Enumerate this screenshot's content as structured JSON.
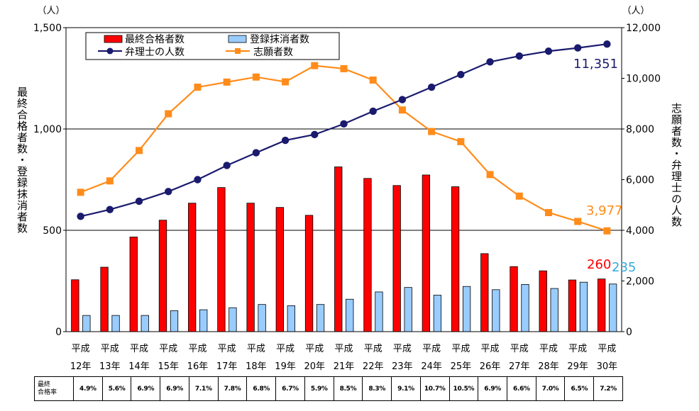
{
  "chart_data": {
    "type": "bar+line",
    "categories": [
      [
        "平成",
        "12年"
      ],
      [
        "平成",
        "13年"
      ],
      [
        "平成",
        "14年"
      ],
      [
        "平成",
        "15年"
      ],
      [
        "平成",
        "16年"
      ],
      [
        "平成",
        "17年"
      ],
      [
        "平成",
        "18年"
      ],
      [
        "平成",
        "19年"
      ],
      [
        "平成",
        "20年"
      ],
      [
        "平成",
        "21年"
      ],
      [
        "平成",
        "22年"
      ],
      [
        "平成",
        "23年"
      ],
      [
        "平成",
        "24年"
      ],
      [
        "平成",
        "25年"
      ],
      [
        "平成",
        "26年"
      ],
      [
        "平成",
        "27年"
      ],
      [
        "平成",
        "28年"
      ],
      [
        "平成",
        "29年"
      ],
      [
        "平成",
        "30年"
      ]
    ],
    "left_axis": {
      "label": "最終合格者数・登録抹消者数",
      "unit": "（人）",
      "ylim": [
        0,
        1500
      ],
      "ticks": [
        0,
        500,
        1000,
        1500
      ],
      "tick_labels": [
        "0",
        "500",
        "1,000",
        "1,500"
      ]
    },
    "right_axis": {
      "label": "志願者数・弁理士の人数",
      "unit": "（人）",
      "ylim": [
        0,
        12000
      ],
      "ticks": [
        0,
        2000,
        4000,
        6000,
        8000,
        10000,
        12000
      ],
      "tick_labels": [
        "0",
        "2,000",
        "4,000",
        "6,000",
        "8,000",
        "10,000",
        "12,000"
      ]
    },
    "series": [
      {
        "name": "最終合格者数",
        "type": "bar",
        "axis": "left",
        "color": "#ff0000",
        "values": [
          256,
          318,
          467,
          550,
          634,
          711,
          634,
          613,
          574,
          813,
          756,
          721,
          773,
          715,
          385,
          321,
          300,
          255,
          260
        ]
      },
      {
        "name": "登録抹消者数",
        "type": "bar",
        "axis": "left",
        "color": "#99ccff",
        "values": [
          80,
          80,
          80,
          103,
          108,
          118,
          134,
          128,
          134,
          160,
          196,
          218,
          180,
          223,
          207,
          233,
          213,
          244,
          235
        ]
      },
      {
        "name": "弁理士の人数",
        "type": "line",
        "axis": "right",
        "color": "#1a1a6e",
        "values": [
          4550,
          4820,
          5150,
          5530,
          6000,
          6560,
          7060,
          7550,
          7780,
          8200,
          8700,
          9160,
          9650,
          10150,
          10650,
          10880,
          11070,
          11200,
          11351
        ]
      },
      {
        "name": "志願者数",
        "type": "line",
        "axis": "right",
        "color": "#ff8c1a",
        "values": [
          5500,
          5950,
          7150,
          8600,
          9650,
          9850,
          10050,
          9860,
          10500,
          10380,
          9930,
          8750,
          7900,
          7500,
          6200,
          5350,
          4700,
          4350,
          3977
        ]
      }
    ],
    "annotations": [
      {
        "text": "11,351",
        "series": "弁理士の人数",
        "color": "#1a1a6e"
      },
      {
        "text": "3,977",
        "series": "志願者数",
        "color": "#ff8c1a"
      },
      {
        "text": "260",
        "series": "最終合格者数",
        "color": "#ff0000"
      },
      {
        "text": "235",
        "series": "登録抹消者数",
        "color": "#33aadd"
      }
    ],
    "legend": {
      "placement": "top-left",
      "entries": [
        "最終合格者数",
        "登録抹消者数",
        "弁理士の人数",
        "志願者数"
      ]
    },
    "gridlines": true
  },
  "rate_table": {
    "header": "最終合格率",
    "header_lines": [
      "最終",
      "合格率"
    ],
    "values": [
      "4.9%",
      "5.6%",
      "6.9%",
      "6.9%",
      "7.1%",
      "7.8%",
      "6.8%",
      "6.7%",
      "5.9%",
      "8.5%",
      "8.3%",
      "9.1%",
      "10.7%",
      "10.5%",
      "6.9%",
      "6.6%",
      "7.0%",
      "6.5%",
      "7.2%"
    ]
  }
}
